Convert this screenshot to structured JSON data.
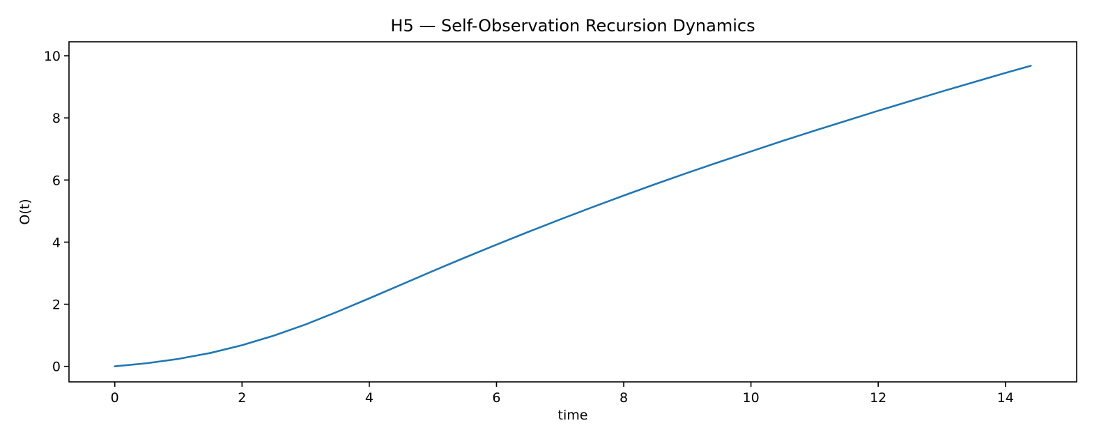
{
  "chart_data": {
    "type": "line",
    "title": "H5 — Self-Observation Recursion Dynamics",
    "xlabel": "time",
    "ylabel": "O(t)",
    "xlim": [
      -0.72,
      15.12
    ],
    "ylim": [
      -0.5,
      10.45
    ],
    "xticks": [
      0,
      2,
      4,
      6,
      8,
      10,
      12,
      14
    ],
    "yticks": [
      0,
      2,
      4,
      6,
      8,
      10
    ],
    "grid": false,
    "legend": "none",
    "series": [
      {
        "color": "#1f77b4",
        "x": [
          0,
          0.5,
          1,
          1.5,
          2,
          2.5,
          3,
          3.5,
          4,
          4.5,
          5,
          5.5,
          6,
          6.5,
          7,
          7.5,
          8,
          8.5,
          9,
          9.5,
          10,
          10.5,
          11,
          11.5,
          12,
          12.5,
          13,
          13.5,
          14,
          14.4
        ],
        "y": [
          0,
          0.1,
          0.24,
          0.43,
          0.68,
          0.99,
          1.35,
          1.76,
          2.19,
          2.63,
          3.07,
          3.5,
          3.92,
          4.33,
          4.73,
          5.12,
          5.5,
          5.87,
          6.23,
          6.58,
          6.92,
          7.26,
          7.59,
          7.91,
          8.23,
          8.54,
          8.85,
          9.15,
          9.45,
          9.68
        ]
      }
    ]
  }
}
